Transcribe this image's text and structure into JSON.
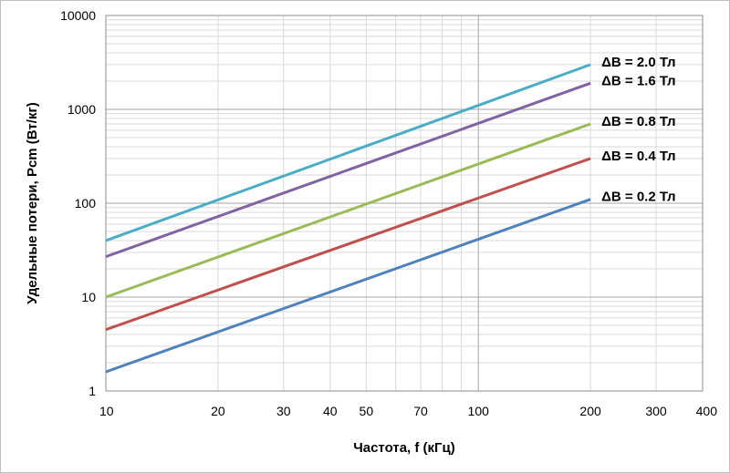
{
  "chart_data": {
    "type": "line",
    "xlabel": "Частота, f (кГц)",
    "ylabel": "Удельные потери, Pcm (Вт/кг)",
    "x_scale": "log",
    "y_scale": "log",
    "xlim": [
      10,
      400
    ],
    "ylim": [
      1,
      10000
    ],
    "x_ticks": [
      "10",
      "20",
      "30",
      "40",
      "50",
      "70",
      "100",
      "200",
      "300",
      "400"
    ],
    "y_ticks": [
      "1",
      "10",
      "100",
      "1000",
      "10000"
    ],
    "grid": true,
    "series": [
      {
        "name": "ΔB = 2.0 Тл",
        "color": "#4bacc6",
        "x": [
          10,
          200
        ],
        "y": [
          40,
          3000
        ]
      },
      {
        "name": "ΔB = 1.6 Тл",
        "color": "#8064a2",
        "x": [
          10,
          200
        ],
        "y": [
          27,
          1900
        ]
      },
      {
        "name": "ΔB = 0.8 Тл",
        "color": "#9bbb59",
        "x": [
          10,
          200
        ],
        "y": [
          10,
          700
        ]
      },
      {
        "name": "ΔB = 0.4 Тл",
        "color": "#c0504d",
        "x": [
          10,
          200
        ],
        "y": [
          4.5,
          300
        ]
      },
      {
        "name": "ΔB = 0.2 Тл",
        "color": "#4f81bd",
        "x": [
          10,
          200
        ],
        "y": [
          1.6,
          110
        ]
      }
    ]
  }
}
